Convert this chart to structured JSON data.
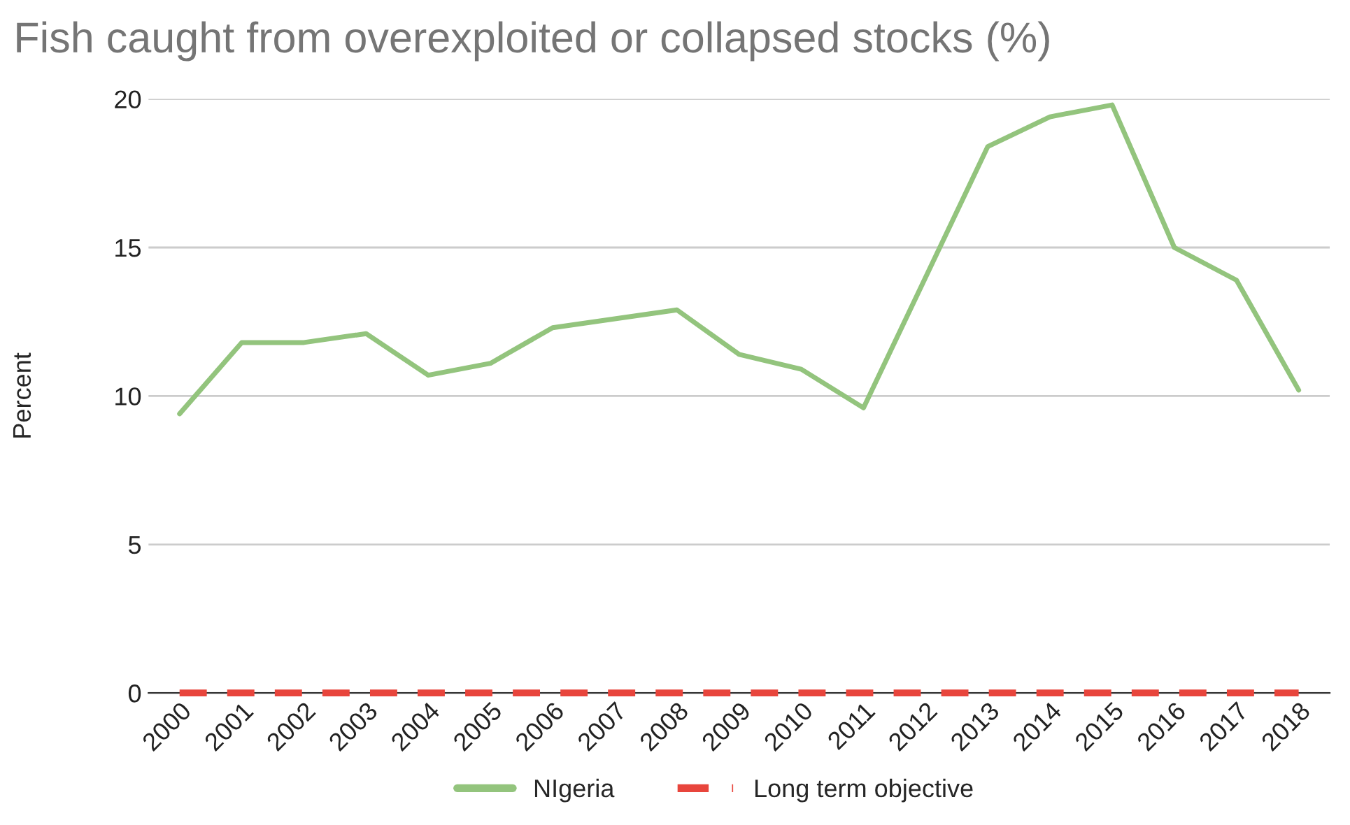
{
  "chart_data": {
    "type": "line",
    "title": "Fish caught from overexploited or collapsed stocks (%)",
    "ylabel": "Percent",
    "categories": [
      "2000",
      "2001",
      "2002",
      "2003",
      "2004",
      "2005",
      "2006",
      "2007",
      "2008",
      "2009",
      "2010",
      "2011",
      "2012",
      "2013",
      "2014",
      "2015",
      "2016",
      "2017",
      "2018"
    ],
    "series": [
      {
        "name": "NIgeria",
        "color": "#93c47d",
        "line_style": "solid",
        "values": [
          9.4,
          11.8,
          11.8,
          12.1,
          10.7,
          11.1,
          12.3,
          12.6,
          12.9,
          11.4,
          10.9,
          9.6,
          14.0,
          18.4,
          19.4,
          19.8,
          15.0,
          13.9,
          10.2
        ]
      },
      {
        "name": "Long term objective",
        "color": "#e8453c",
        "line_style": "dashed",
        "values": [
          0,
          0,
          0,
          0,
          0,
          0,
          0,
          0,
          0,
          0,
          0,
          0,
          0,
          0,
          0,
          0,
          0,
          0,
          0
        ]
      }
    ],
    "ylim": [
      0,
      20
    ],
    "yticks": [
      0,
      5,
      10,
      15,
      20
    ],
    "grid": "y",
    "legend": "bottom",
    "marker": "none"
  }
}
